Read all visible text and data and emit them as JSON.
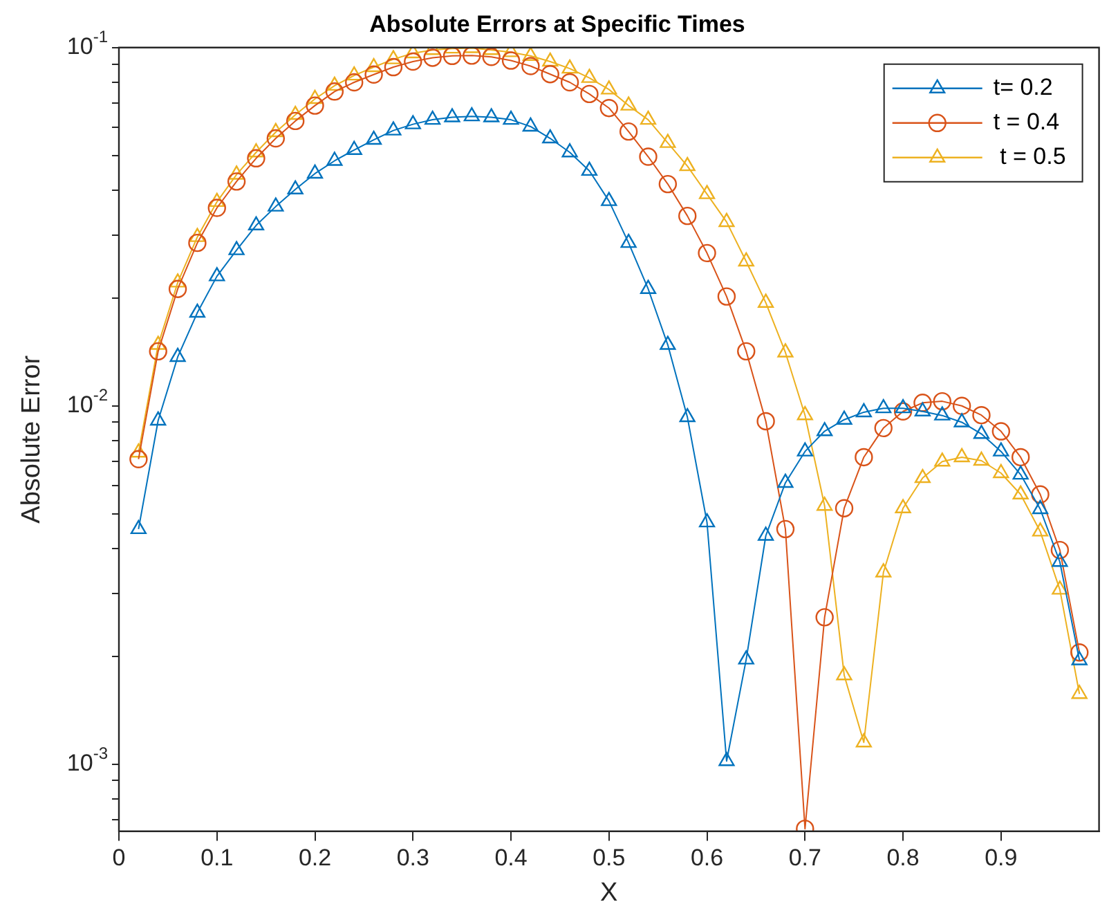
{
  "chart_data": {
    "type": "line",
    "title": "Absolute Errors at Specific Times",
    "xlabel": "X",
    "ylabel": "Absolute Error",
    "log": "y",
    "grid": false,
    "legend": "top right",
    "line_style": "solid",
    "x": [
      0.02,
      0.04,
      0.06,
      0.08,
      0.1,
      0.12,
      0.14,
      0.16,
      0.18,
      0.2,
      0.22,
      0.24,
      0.26,
      0.28,
      0.3,
      0.32,
      0.34,
      0.36,
      0.38,
      0.4,
      0.42,
      0.44,
      0.46,
      0.48,
      0.5,
      0.52,
      0.54,
      0.56,
      0.58,
      0.6,
      0.62,
      0.64,
      0.66,
      0.68,
      0.7,
      0.72,
      0.74,
      0.76,
      0.78,
      0.8,
      0.82,
      0.84,
      0.86,
      0.88,
      0.9,
      0.92,
      0.94,
      0.96,
      0.98
    ],
    "xlim": [
      0,
      1
    ],
    "xticks": [
      0,
      0.1,
      0.2,
      0.3,
      0.4,
      0.5,
      0.6,
      0.7,
      0.8,
      0.9
    ],
    "ylim": [
      0.00065,
      0.1
    ],
    "yticks": [
      {
        "value": 0.0007,
        "label": null
      },
      {
        "value": 0.0008,
        "label": null
      },
      {
        "value": 0.0009,
        "label": null
      },
      {
        "value": 0.001,
        "label": "10$^{-3}$"
      },
      {
        "value": 0.002,
        "label": null
      },
      {
        "value": 0.003,
        "label": null
      },
      {
        "value": 0.004,
        "label": null
      },
      {
        "value": 0.005,
        "label": null
      },
      {
        "value": 0.006,
        "label": null
      },
      {
        "value": 0.007,
        "label": null
      },
      {
        "value": 0.008,
        "label": null
      },
      {
        "value": 0.009,
        "label": null
      },
      {
        "value": 0.01,
        "label": "10$^{-2}$"
      },
      {
        "value": 0.02,
        "label": null
      },
      {
        "value": 0.03,
        "label": null
      },
      {
        "value": 0.04,
        "label": null
      },
      {
        "value": 0.05,
        "label": null
      },
      {
        "value": 0.06,
        "label": null
      },
      {
        "value": 0.07,
        "label": null
      },
      {
        "value": 0.08,
        "label": null
      },
      {
        "value": 0.09,
        "label": null
      },
      {
        "value": 0.1,
        "label": "10$^{-1}$"
      }
    ],
    "series": [
      {
        "name": "t= 0.2",
        "color": "#0072bd",
        "marker": "triangle",
        "values": [
          0.00453,
          0.0091,
          0.0137,
          0.0182,
          0.023,
          0.0272,
          0.0319,
          0.036,
          0.0402,
          0.0445,
          0.0483,
          0.0518,
          0.0553,
          0.0587,
          0.0611,
          0.0629,
          0.0639,
          0.0643,
          0.0639,
          0.0629,
          0.0602,
          0.0558,
          0.051,
          0.0453,
          0.0373,
          0.0285,
          0.0212,
          0.0148,
          0.0093,
          0.00473,
          0.00102,
          0.00196,
          0.00434,
          0.0061,
          0.00746,
          0.0085,
          0.00915,
          0.0096,
          0.00985,
          0.00985,
          0.00965,
          0.0094,
          0.009,
          0.00835,
          0.00746,
          0.00643,
          0.00515,
          0.00367,
          0.00195
        ]
      },
      {
        "name": "t = 0.4",
        "color": "#d95319",
        "marker": "circle",
        "values": [
          0.0071,
          0.0142,
          0.0212,
          0.0285,
          0.0357,
          0.0423,
          0.0491,
          0.0558,
          0.0624,
          0.0689,
          0.0754,
          0.08,
          0.0841,
          0.0882,
          0.0914,
          0.0937,
          0.0948,
          0.095,
          0.0942,
          0.092,
          0.0888,
          0.0843,
          0.08,
          0.0742,
          0.0678,
          0.0583,
          0.0496,
          0.0416,
          0.0339,
          0.0267,
          0.0202,
          0.0142,
          0.00906,
          0.00453,
          0.00066,
          0.00257,
          0.00518,
          0.00719,
          0.00867,
          0.00965,
          0.0102,
          0.0103,
          0.01,
          0.00942,
          0.00849,
          0.00719,
          0.00566,
          0.00396,
          0.00205
        ]
      },
      {
        "name": " t = 0.5",
        "color": "#edb120",
        "marker": "triangle",
        "values": [
          0.00741,
          0.0148,
          0.0221,
          0.0296,
          0.0371,
          0.0442,
          0.051,
          0.0581,
          0.0649,
          0.0719,
          0.0783,
          0.0836,
          0.0882,
          0.0928,
          0.0964,
          0.0985,
          0.0994,
          0.0997,
          0.0985,
          0.0971,
          0.0948,
          0.0914,
          0.0874,
          0.0823,
          0.0764,
          0.0689,
          0.0629,
          0.0542,
          0.0467,
          0.039,
          0.0326,
          0.0253,
          0.0194,
          0.0141,
          0.00942,
          0.00526,
          0.00177,
          0.00115,
          0.00343,
          0.00518,
          0.00629,
          0.00699,
          0.00719,
          0.00703,
          0.00649,
          0.00566,
          0.00446,
          0.00307,
          0.00157
        ]
      }
    ]
  }
}
